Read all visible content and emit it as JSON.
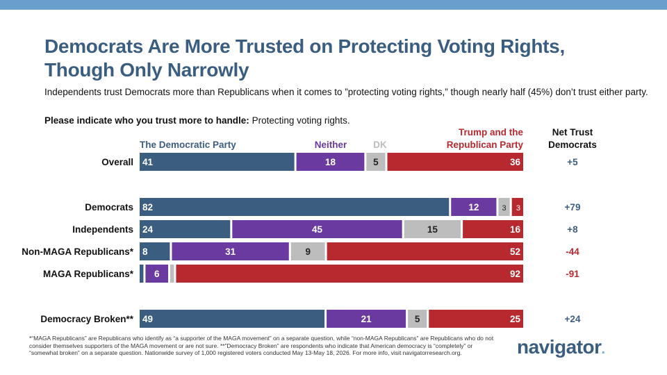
{
  "header": {
    "title_line1": "Democrats Are More Trusted on Protecting Voting Rights,",
    "title_line2": "Though Only Narrowly",
    "subtitle": "Independents trust Democrats more than Republicans when it comes to ”protecting voting rights,” though nearly half (45%) don’t trust either party.",
    "question_bold": "Please indicate who you trust more to handle:",
    "question_rest": " Protecting voting rights."
  },
  "colors": {
    "top_bar": "#6a9fcb",
    "title": "#3b5e80",
    "democratic": "#3b5e80",
    "neither": "#6b3aa0",
    "dk": "#bdbdbd",
    "republican": "#b8282f",
    "net_positive": "#3b5e80",
    "net_negative": "#b8282f"
  },
  "chart_data": {
    "type": "bar",
    "orientation": "horizontal",
    "stacked": true,
    "categories": [
      "Overall",
      "Democrats",
      "Independents",
      "Non-MAGA Republicans*",
      "MAGA Republicans*",
      "Democracy Broken**"
    ],
    "series": [
      {
        "name": "The Democratic Party",
        "values": [
          41,
          82,
          24,
          8,
          1,
          49
        ],
        "labels": [
          "41",
          "82",
          "24",
          "8",
          "",
          "49"
        ]
      },
      {
        "name": "Neither",
        "values": [
          18,
          12,
          45,
          31,
          6,
          21
        ],
        "labels": [
          "18",
          "12",
          "45",
          "31",
          "6",
          "21"
        ]
      },
      {
        "name": "DK",
        "values": [
          5,
          3,
          15,
          9,
          1,
          5
        ],
        "labels": [
          "5",
          "3",
          "15",
          "9",
          "",
          "5"
        ]
      },
      {
        "name": "Trump and the Republican Party",
        "values": [
          36,
          3,
          16,
          52,
          92,
          25
        ],
        "labels": [
          "36",
          "3",
          "16",
          "52",
          "92",
          "25"
        ]
      }
    ],
    "legend_line1": [
      "The Democratic Party",
      "Neither",
      "DK",
      "Trump and the"
    ],
    "legend_trump_line2": "Republican Party",
    "net_header_line1": "Net Trust",
    "net_header_line2": "Democrats",
    "net_trust": [
      "+5",
      "+79",
      "+8",
      "-44",
      "-91",
      "+24"
    ]
  },
  "footnote": "*“MAGA Republicans” are Republicans who identify as “a supporter of the MAGA movement” on a separate question, while “non-MAGA Republicans” are Republicans who do not consider themselves supporters of the MAGA movement or are not sure. **”Democracy Broken” are respondents who indicate that American democracy is “completely” or “somewhat broken” on a separate question. Nationwide survey of 1,000 registered voters conducted May 13-May 18, 2026. For more info, visit navigatorresearch.org.",
  "logo": {
    "text": "navigator",
    "dot": "."
  }
}
